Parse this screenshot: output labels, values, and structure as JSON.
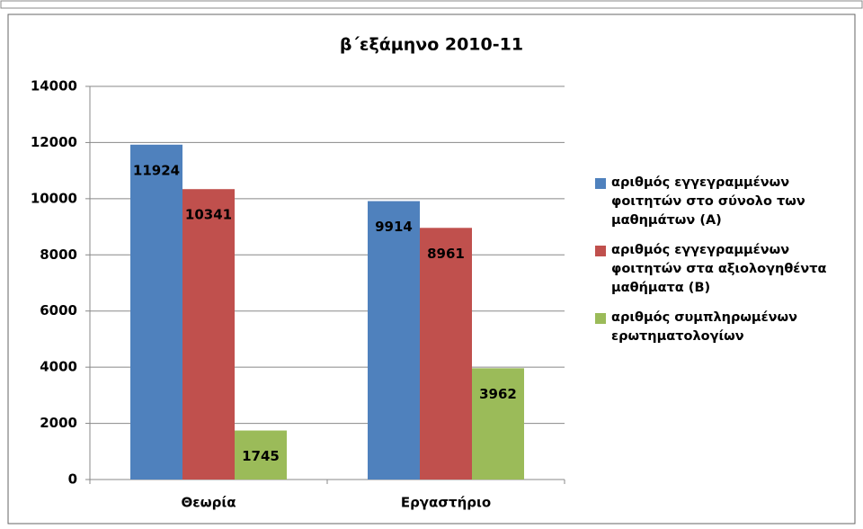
{
  "chart_data": {
    "type": "bar",
    "title": "β΄εξάμηνο 2010-11",
    "categories": [
      "Θεωρία",
      "Εργαστήριο"
    ],
    "series": [
      {
        "name": "αριθμός εγγεγραμμένων φοιτητών στο σύνολο των μαθημάτων (Α)",
        "color": "#4f81bd",
        "values": [
          11924,
          9914
        ]
      },
      {
        "name": "αριθμός εγγεγραμμένων φοιτητών στα αξιολογηθέντα μαθήματα (Β)",
        "color": "#c0504d",
        "values": [
          10341,
          8961
        ]
      },
      {
        "name": "αριθμός συμπληρωμένων ερωτηματολογίων",
        "color": "#9bbb59",
        "values": [
          1745,
          3962
        ]
      }
    ],
    "ylim": [
      0,
      14000
    ],
    "yticks": [
      0,
      2000,
      4000,
      6000,
      8000,
      10000,
      12000,
      14000
    ],
    "grid": true,
    "legend": "right"
  }
}
